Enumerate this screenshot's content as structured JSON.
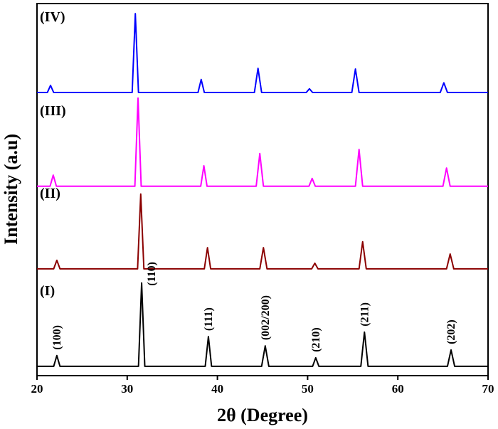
{
  "chart_data": {
    "type": "line",
    "xlabel": "2θ (Degree)",
    "ylabel": "Intensity (a.u)",
    "xlim": [
      20,
      70
    ],
    "xticks": [
      20,
      30,
      40,
      50,
      60,
      70
    ],
    "ylim": [
      0,
      100
    ],
    "series": [
      {
        "name": "(I)",
        "color": "#000000",
        "x": [
          20,
          21.85,
          22.2,
          22.55,
          31.25,
          31.6,
          31.95,
          38.65,
          39,
          39.35,
          44.9,
          45.3,
          45.7,
          50.55,
          50.9,
          51.25,
          55.9,
          56.3,
          56.7,
          65.5,
          65.9,
          66.3,
          70
        ],
        "values": [
          2.5,
          2.5,
          5.4,
          2.5,
          2.5,
          24.9,
          2.5,
          2.5,
          10.5,
          2.5,
          2.5,
          8,
          2.5,
          2.5,
          4.8,
          2.5,
          2.5,
          11.7,
          2.5,
          2.5,
          6.9,
          2.5,
          2.5
        ]
      },
      {
        "name": "(II)",
        "color": "#8b0000",
        "x": [
          20,
          21.85,
          22.2,
          22.55,
          31.15,
          31.5,
          31.85,
          38.55,
          38.9,
          39.25,
          44.7,
          45.1,
          45.5,
          50.45,
          50.8,
          51.15,
          55.7,
          56.1,
          56.5,
          65.4,
          65.8,
          66.2,
          70
        ],
        "values": [
          28.7,
          28.7,
          31,
          28.7,
          28.7,
          48.8,
          28.7,
          28.7,
          34.4,
          28.7,
          28.7,
          34.4,
          28.7,
          28.7,
          30.2,
          28.7,
          28.7,
          36,
          28.7,
          28.7,
          32.7,
          28.7,
          28.7
        ]
      },
      {
        "name": "(III)",
        "color": "#ff00ff",
        "x": [
          20,
          21.45,
          21.8,
          22.15,
          30.85,
          31.2,
          31.55,
          38.15,
          38.5,
          38.85,
          44.3,
          44.7,
          45.1,
          50.15,
          50.5,
          50.85,
          55.3,
          55.7,
          56.1,
          65.0,
          65.4,
          65.8,
          70
        ],
        "values": [
          50.9,
          50.9,
          53.9,
          50.9,
          50.9,
          74.6,
          50.9,
          50.9,
          56.4,
          50.9,
          50.9,
          59.7,
          50.9,
          50.9,
          53,
          50.9,
          50.9,
          60.8,
          50.9,
          50.9,
          55.8,
          50.9,
          50.9
        ]
      },
      {
        "name": "(IV)",
        "color": "#0000ff",
        "x": [
          20,
          21.15,
          21.5,
          21.85,
          30.55,
          30.9,
          31.25,
          37.85,
          38.2,
          38.55,
          44.1,
          44.5,
          44.9,
          49.85,
          50.2,
          50.55,
          54.9,
          55.3,
          55.7,
          64.7,
          65.1,
          65.5,
          70
        ],
        "values": [
          76.1,
          76.1,
          78,
          76.1,
          76.1,
          97.3,
          76.1,
          76.1,
          79.6,
          76.1,
          76.1,
          82.6,
          76.1,
          76.1,
          77.1,
          76.1,
          76.1,
          82.4,
          76.1,
          76.1,
          78.7,
          76.1,
          76.1
        ]
      }
    ],
    "annotations": [
      {
        "text": "(100)",
        "x": 22.2
      },
      {
        "text": "(110)",
        "x": 31.6
      },
      {
        "text": "(111)",
        "x": 39.0
      },
      {
        "text": "(002/200)",
        "x": 45.3
      },
      {
        "text": "(210)",
        "x": 50.9
      },
      {
        "text": "(211)",
        "x": 56.3
      },
      {
        "text": "(202)",
        "x": 65.9
      }
    ]
  }
}
